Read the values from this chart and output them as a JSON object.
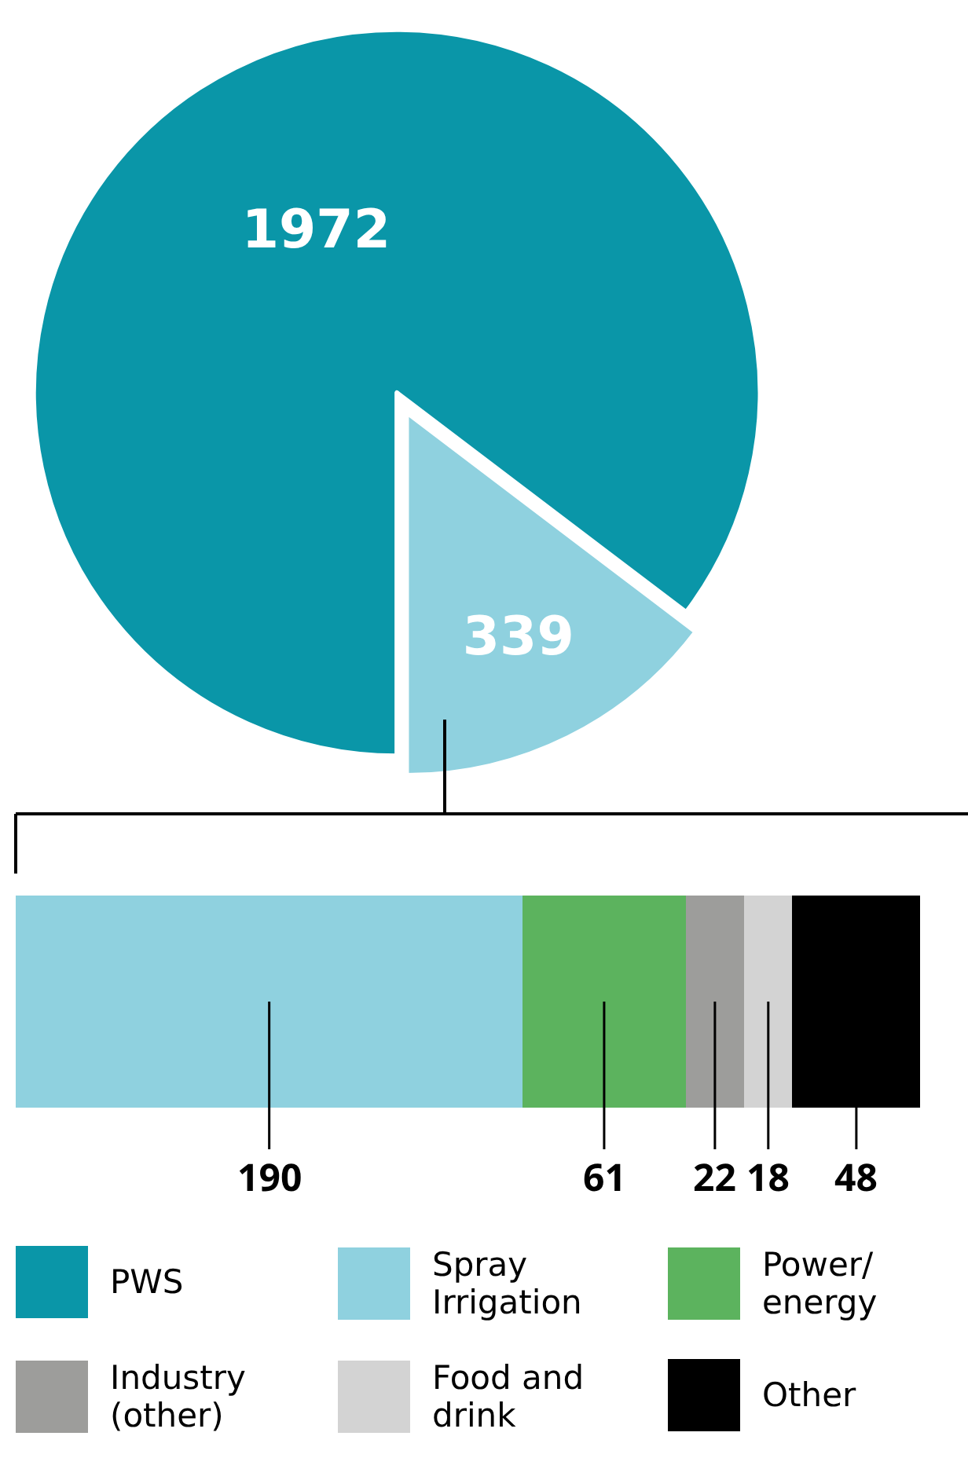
{
  "chart_data": [
    {
      "type": "pie",
      "categories": [
        "PWS",
        null
      ],
      "values": [
        1972,
        339
      ],
      "colors": [
        "#0a96a8",
        "#8fd1df"
      ],
      "data_labels": true,
      "legend": "bottom"
    },
    {
      "type": "bar",
      "orientation": "horizontal",
      "stacked": true,
      "categories": [
        null
      ],
      "data_labels": true,
      "legend": "bottom",
      "series": [
        {
          "name": "Spray Irrigation",
          "color": "#8fd1df",
          "values": [
            190
          ]
        },
        {
          "name": "Power/ energy",
          "color": "#5cb35e",
          "values": [
            61
          ]
        },
        {
          "name": "Industry (other)",
          "color": "#9d9d9b",
          "values": [
            22
          ]
        },
        {
          "name": "Food and drink",
          "color": "#d3d3d3",
          "values": [
            18
          ]
        },
        {
          "name": "Other",
          "color": "#000000",
          "values": [
            48
          ]
        }
      ]
    }
  ]
}
